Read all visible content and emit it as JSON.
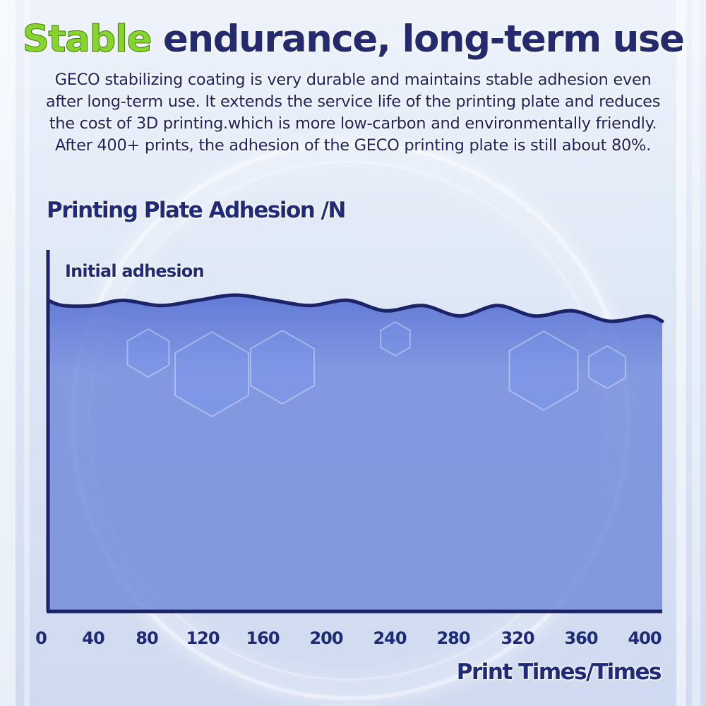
{
  "header": {
    "title_accent": "Stable",
    "title_rest": " endurance, long-term use",
    "description_lines": [
      "GECO stabilizing coating is very durable and maintains stable adhesion even",
      "after long-term use. It extends the service life of the printing plate and reduces",
      "the cost of 3D printing.which is more low-carbon and  environmentally friendly.",
      "After 400+ prints, the adhesion of the GECO printing plate is still about 80%."
    ]
  },
  "colors": {
    "accent_green": "#86d42c",
    "navy": "#1f2a78",
    "fill_blue": "#5a74d6"
  },
  "chart_data": {
    "type": "area",
    "ylabel": "Printing Plate Adhesion /N",
    "xlabel": "Print Times/Times",
    "annotation": "Initial adhesion",
    "x_ticks": [
      "0",
      "40",
      "80",
      "120",
      "160",
      "200",
      "240",
      "280",
      "320",
      "360",
      "400"
    ],
    "xlim": [
      0,
      410
    ],
    "ylim": [
      0,
      1
    ],
    "grid": false,
    "legend": "none",
    "series": [
      {
        "x": [
          0,
          10,
          30,
          50,
          75,
          100,
          125,
          150,
          175,
          200,
          225,
          250,
          275,
          300,
          325,
          350,
          375,
          400,
          410
        ],
        "values": [
          0.97,
          0.96,
          0.96,
          0.97,
          0.96,
          0.97,
          0.98,
          0.97,
          0.96,
          0.97,
          0.95,
          0.96,
          0.94,
          0.96,
          0.94,
          0.95,
          0.93,
          0.94,
          0.93
        ]
      }
    ]
  }
}
